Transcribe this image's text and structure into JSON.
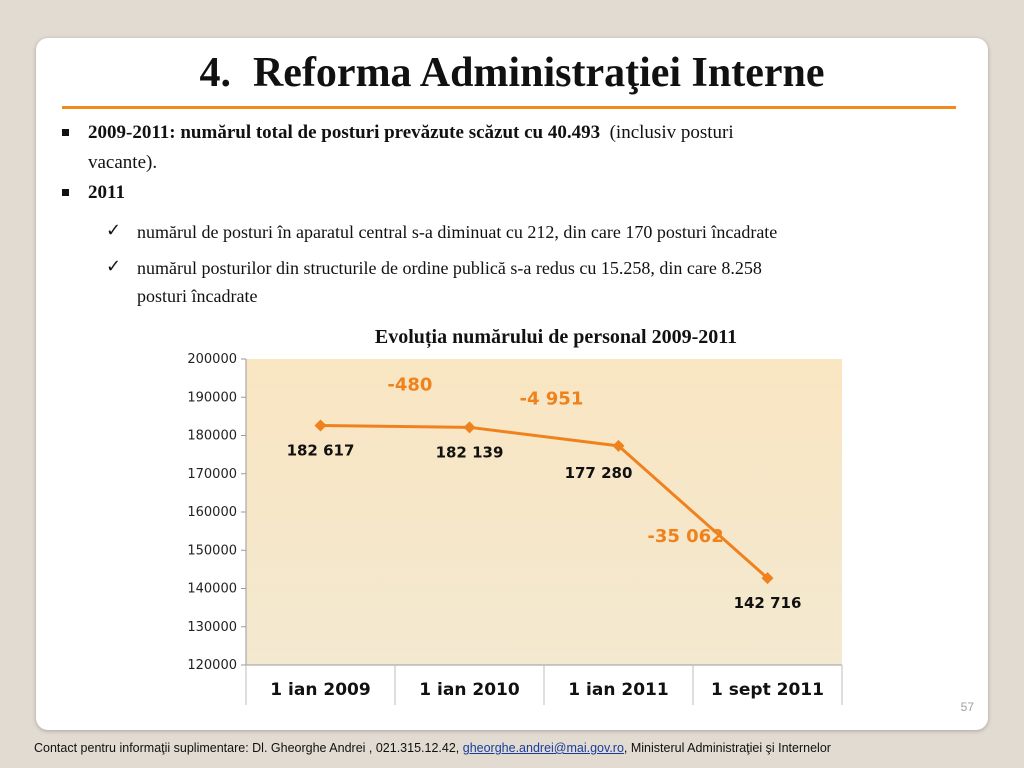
{
  "slide": {
    "title_number": "4.",
    "title_text": "Reforma Administraţiei Interne",
    "bullets": [
      {
        "bold": "2009-2011: numărul total de posturi prevăzute scăzut cu 40.493",
        "normal": "(inclusiv posturi",
        "continuation": "vacante)."
      },
      {
        "bold": "2011"
      }
    ],
    "sub_bullets": [
      {
        "line1": "numărul de posturi în aparatul central s-a diminuat cu 212, din care 170 posturi încadrate"
      },
      {
        "line1": "numărul posturilor din structurile de ordine publică s-a redus cu 15.258, din care 8.258",
        "line2": "posturi încadrate"
      }
    ],
    "page_number": "57"
  },
  "footer": {
    "prefix": "Contact pentru informaţii suplimentare: Dl. Gheorghe Andrei , 021.315.12.42,",
    "email": "gheorghe.andrei@mai.gov.ro",
    "suffix": ", Ministerul Administraţiei şi Internelor"
  },
  "chart_data": {
    "type": "line",
    "title": "Evoluția numărului de personal 2009-2011",
    "categories": [
      "1 ian 2009",
      "1 ian 2010",
      "1 ian 2011",
      "1 sept 2011"
    ],
    "series": [
      {
        "values": [
          182617,
          182139,
          177280,
          142716
        ]
      }
    ],
    "data_labels": [
      "182 617",
      "182 139",
      "177 280",
      "142 716"
    ],
    "change_labels": [
      "-480",
      "-4 951",
      "-35 062"
    ],
    "ylim": [
      120000,
      200000
    ],
    "y_ticks": [
      120000,
      130000,
      140000,
      150000,
      160000,
      170000,
      180000,
      190000,
      200000
    ],
    "grid": false,
    "legend": "none",
    "line_color": "#f0821e",
    "change_label_color": "#f0821e",
    "plot_background_top": "#f9e6c2",
    "plot_background_bottom": "#f3e8d0"
  }
}
